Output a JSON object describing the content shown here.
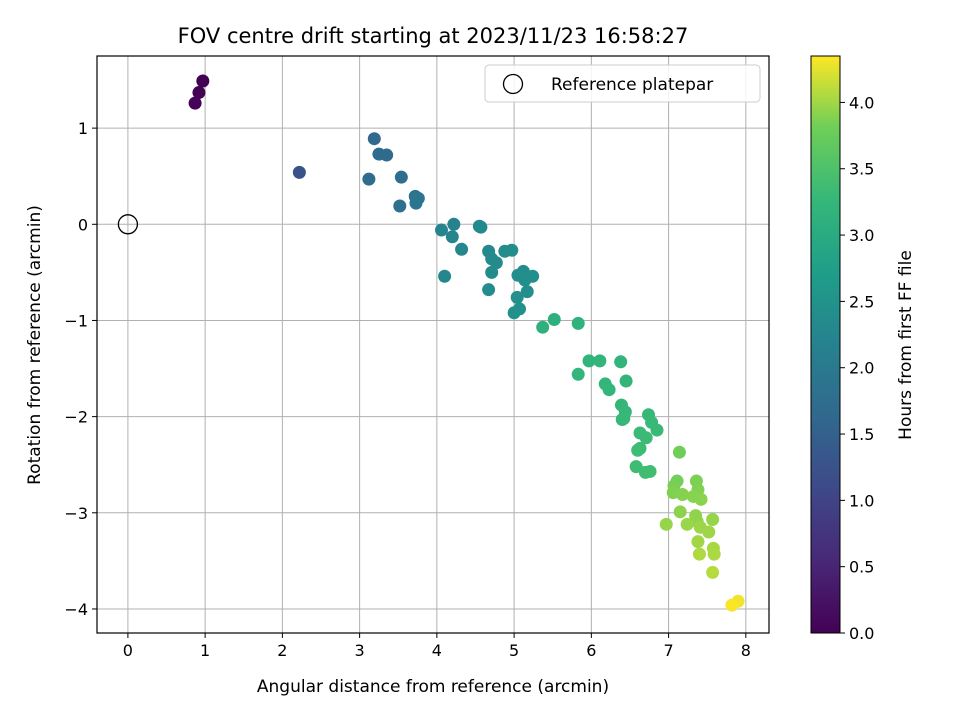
{
  "chart_data": {
    "type": "scatter",
    "title": "FOV centre drift starting at 2023/11/23 16:58:27",
    "xlabel": "Angular distance from reference (arcmin)",
    "ylabel": "Rotation from reference (arcmin)",
    "xlim": [
      -0.4,
      8.3
    ],
    "ylim": [
      -4.25,
      1.75
    ],
    "xticks": [
      0,
      1,
      2,
      3,
      4,
      5,
      6,
      7,
      8
    ],
    "yticks": [
      -4,
      -3,
      -2,
      -1,
      0,
      1
    ],
    "grid": true,
    "legend": {
      "placement": "top-right",
      "entries": [
        "Reference platepar"
      ]
    },
    "colorbar": {
      "label": "Hours from first FF file",
      "colormap": "viridis",
      "range": [
        0.0,
        4.35
      ],
      "ticks": [
        "0.0",
        "0.5",
        "1.0",
        "1.5",
        "2.0",
        "2.5",
        "3.0",
        "3.5",
        "4.0"
      ]
    },
    "reference_point": {
      "x": 0,
      "y": 0
    },
    "points": [
      {
        "x": 0.97,
        "y": 1.49,
        "c": 0.0
      },
      {
        "x": 0.92,
        "y": 1.37,
        "c": 0.02
      },
      {
        "x": 0.87,
        "y": 1.26,
        "c": 0.04
      },
      {
        "x": 2.22,
        "y": 0.54,
        "c": 1.25
      },
      {
        "x": 3.19,
        "y": 0.89,
        "c": 1.65
      },
      {
        "x": 3.25,
        "y": 0.73,
        "c": 1.68
      },
      {
        "x": 3.35,
        "y": 0.72,
        "c": 1.7
      },
      {
        "x": 3.12,
        "y": 0.47,
        "c": 1.72
      },
      {
        "x": 3.54,
        "y": 0.49,
        "c": 1.78
      },
      {
        "x": 3.52,
        "y": 0.19,
        "c": 1.82
      },
      {
        "x": 3.72,
        "y": 0.29,
        "c": 1.88
      },
      {
        "x": 3.76,
        "y": 0.27,
        "c": 1.9
      },
      {
        "x": 3.73,
        "y": 0.22,
        "c": 1.92
      },
      {
        "x": 4.22,
        "y": 0.0,
        "c": 2.2
      },
      {
        "x": 4.06,
        "y": -0.06,
        "c": 2.22
      },
      {
        "x": 4.2,
        "y": -0.13,
        "c": 2.24
      },
      {
        "x": 4.32,
        "y": -0.26,
        "c": 2.26
      },
      {
        "x": 4.1,
        "y": -0.54,
        "c": 2.28
      },
      {
        "x": 4.55,
        "y": -0.02,
        "c": 2.3
      },
      {
        "x": 4.57,
        "y": -0.03,
        "c": 2.31
      },
      {
        "x": 4.67,
        "y": -0.28,
        "c": 2.32
      },
      {
        "x": 4.71,
        "y": -0.36,
        "c": 2.33
      },
      {
        "x": 4.77,
        "y": -0.4,
        "c": 2.34
      },
      {
        "x": 4.71,
        "y": -0.5,
        "c": 2.35
      },
      {
        "x": 4.67,
        "y": -0.68,
        "c": 2.36
      },
      {
        "x": 4.88,
        "y": -0.28,
        "c": 2.37
      },
      {
        "x": 4.97,
        "y": -0.27,
        "c": 2.38
      },
      {
        "x": 5.12,
        "y": -0.49,
        "c": 2.39
      },
      {
        "x": 5.05,
        "y": -0.53,
        "c": 2.4
      },
      {
        "x": 5.24,
        "y": -0.54,
        "c": 2.41
      },
      {
        "x": 5.14,
        "y": -0.58,
        "c": 2.42
      },
      {
        "x": 5.17,
        "y": -0.7,
        "c": 2.43
      },
      {
        "x": 5.04,
        "y": -0.76,
        "c": 2.44
      },
      {
        "x": 5.07,
        "y": -0.88,
        "c": 2.45
      },
      {
        "x": 5.0,
        "y": -0.92,
        "c": 2.46
      },
      {
        "x": 5.52,
        "y": -0.99,
        "c": 3.1
      },
      {
        "x": 5.37,
        "y": -1.07,
        "c": 3.12
      },
      {
        "x": 5.83,
        "y": -1.03,
        "c": 3.15
      },
      {
        "x": 5.97,
        "y": -1.42,
        "c": 3.17
      },
      {
        "x": 6.11,
        "y": -1.42,
        "c": 3.19
      },
      {
        "x": 6.38,
        "y": -1.43,
        "c": 3.2
      },
      {
        "x": 5.83,
        "y": -1.56,
        "c": 3.21
      },
      {
        "x": 6.45,
        "y": -1.63,
        "c": 3.22
      },
      {
        "x": 6.18,
        "y": -1.66,
        "c": 3.23
      },
      {
        "x": 6.23,
        "y": -1.72,
        "c": 3.24
      },
      {
        "x": 6.39,
        "y": -1.88,
        "c": 3.25
      },
      {
        "x": 6.44,
        "y": -1.95,
        "c": 3.26
      },
      {
        "x": 6.4,
        "y": -2.03,
        "c": 3.27
      },
      {
        "x": 6.42,
        "y": -2.02,
        "c": 3.28
      },
      {
        "x": 6.74,
        "y": -1.98,
        "c": 3.29
      },
      {
        "x": 6.78,
        "y": -2.06,
        "c": 3.3
      },
      {
        "x": 6.85,
        "y": -2.14,
        "c": 3.31
      },
      {
        "x": 6.63,
        "y": -2.17,
        "c": 3.32
      },
      {
        "x": 6.71,
        "y": -2.22,
        "c": 3.33
      },
      {
        "x": 6.63,
        "y": -2.33,
        "c": 3.34
      },
      {
        "x": 6.6,
        "y": -2.35,
        "c": 3.35
      },
      {
        "x": 6.58,
        "y": -2.52,
        "c": 3.36
      },
      {
        "x": 6.7,
        "y": -2.58,
        "c": 3.37
      },
      {
        "x": 6.76,
        "y": -2.57,
        "c": 3.38
      },
      {
        "x": 7.14,
        "y": -2.37,
        "c": 3.8
      },
      {
        "x": 7.11,
        "y": -2.67,
        "c": 3.82
      },
      {
        "x": 7.07,
        "y": -2.72,
        "c": 3.84
      },
      {
        "x": 7.36,
        "y": -2.67,
        "c": 3.86
      },
      {
        "x": 7.38,
        "y": -2.76,
        "c": 3.87
      },
      {
        "x": 7.06,
        "y": -2.79,
        "c": 3.88
      },
      {
        "x": 7.18,
        "y": -2.81,
        "c": 3.89
      },
      {
        "x": 7.32,
        "y": -2.83,
        "c": 3.9
      },
      {
        "x": 7.42,
        "y": -2.86,
        "c": 3.91
      },
      {
        "x": 7.15,
        "y": -2.99,
        "c": 3.92
      },
      {
        "x": 7.35,
        "y": -3.03,
        "c": 3.93
      },
      {
        "x": 7.37,
        "y": -3.09,
        "c": 3.94
      },
      {
        "x": 7.57,
        "y": -3.07,
        "c": 3.95
      },
      {
        "x": 6.97,
        "y": -3.12,
        "c": 3.96
      },
      {
        "x": 7.24,
        "y": -3.12,
        "c": 3.97
      },
      {
        "x": 7.41,
        "y": -3.15,
        "c": 3.98
      },
      {
        "x": 7.52,
        "y": -3.2,
        "c": 3.99
      },
      {
        "x": 7.38,
        "y": -3.3,
        "c": 4.0
      },
      {
        "x": 7.58,
        "y": -3.37,
        "c": 4.02
      },
      {
        "x": 7.59,
        "y": -3.43,
        "c": 4.04
      },
      {
        "x": 7.4,
        "y": -3.43,
        "c": 4.05
      },
      {
        "x": 7.57,
        "y": -3.62,
        "c": 4.08
      },
      {
        "x": 7.9,
        "y": -3.92,
        "c": 4.3
      },
      {
        "x": 7.82,
        "y": -3.96,
        "c": 4.33
      }
    ]
  }
}
